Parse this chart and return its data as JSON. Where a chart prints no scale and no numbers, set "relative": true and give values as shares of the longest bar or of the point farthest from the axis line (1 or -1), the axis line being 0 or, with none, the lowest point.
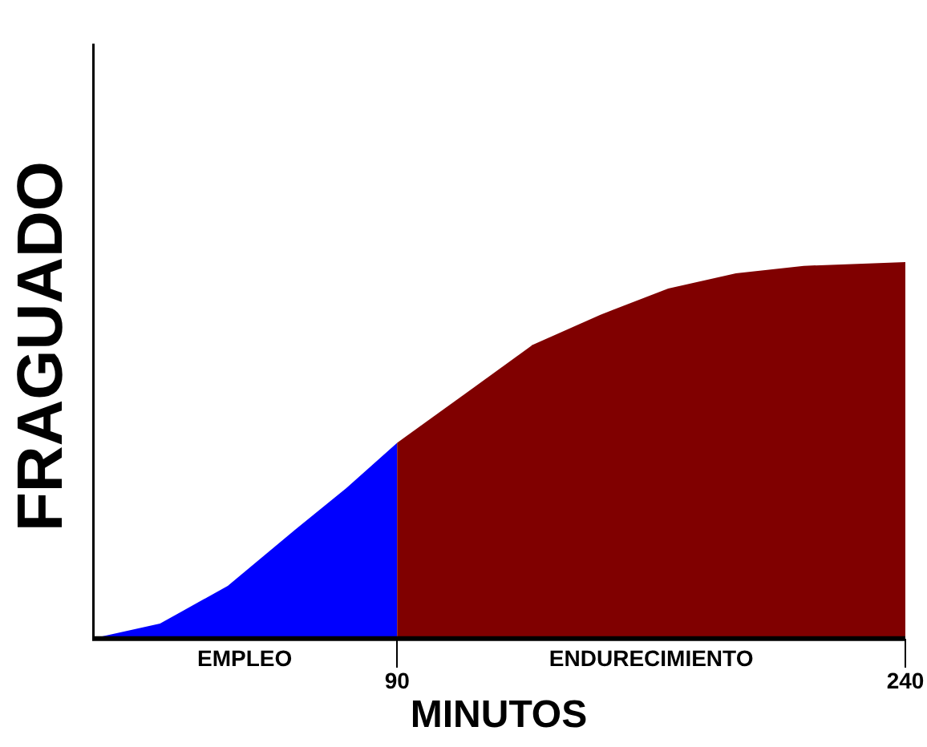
{
  "chart_data": {
    "type": "area",
    "relative": true,
    "xlabel": "MINUTOS",
    "ylabel": "FRAGUADO",
    "xlim": [
      0,
      240
    ],
    "xticks": [
      90,
      240
    ],
    "grid": false,
    "series": [
      {
        "color": "#0000ff",
        "x": [
          0,
          20,
          40,
          60,
          75,
          90
        ],
        "values": [
          0,
          0.04,
          0.14,
          0.29,
          0.4,
          0.52
        ]
      },
      {
        "color": "#800000",
        "x": [
          90,
          110,
          130,
          150,
          170,
          190,
          210,
          240
        ],
        "values": [
          0.52,
          0.65,
          0.78,
          0.86,
          0.93,
          0.97,
          0.99,
          1.0
        ]
      }
    ],
    "annotations": [
      {
        "text": "EMPLEO",
        "x": 45,
        "y": 0
      },
      {
        "text": "ENDURECIMIENTO",
        "x": 165,
        "y": 0
      }
    ]
  }
}
